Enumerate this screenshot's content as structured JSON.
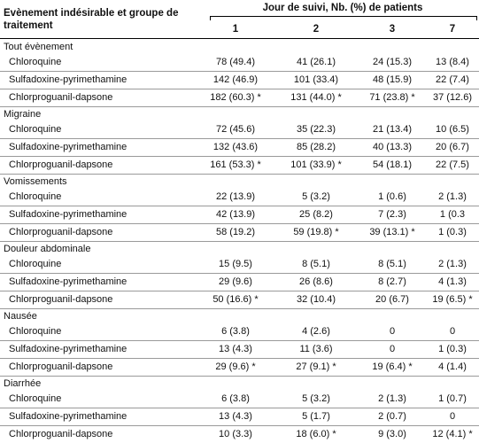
{
  "header": {
    "row_label": "Evènement indésirable et groupe de traitement",
    "spanner": "Jour de suivi, Nb. (%) de patients",
    "days": [
      "1",
      "2",
      "3",
      "7"
    ]
  },
  "groups": [
    {
      "name": "Tout évènement",
      "rows": [
        {
          "treatment": "Chloroquine",
          "values": [
            "78 (49.4)",
            "41 (26.1)",
            "24 (15.3)",
            "13 (8.4)"
          ]
        },
        {
          "treatment": "Sulfadoxine-pyrimethamine",
          "values": [
            "142 (46.9)",
            "101 (33.4)",
            "48 (15.9)",
            "22 (7.4)"
          ]
        },
        {
          "treatment": "Chlorproguanil-dapsone",
          "values": [
            "182 (60.3)  *",
            "131 (44.0)  *",
            "71 (23.8)  *",
            "37 (12.6)"
          ]
        }
      ]
    },
    {
      "name": "Migraine",
      "rows": [
        {
          "treatment": "Chloroquine",
          "values": [
            "72 (45.6)",
            "35 (22.3)",
            "21 (13.4)",
            "10 (6.5)"
          ]
        },
        {
          "treatment": "Sulfadoxine-pyrimethamine",
          "values": [
            "132 (43.6)",
            "85 (28.2)",
            "40 (13.3)",
            "20 (6.7)"
          ]
        },
        {
          "treatment": "Chlorproguanil-dapsone",
          "values": [
            "161 (53.3)  *",
            "101 (33.9)  *",
            "54 (18.1)",
            "22 (7.5)"
          ]
        }
      ]
    },
    {
      "name": "Vomissements",
      "rows": [
        {
          "treatment": "Chloroquine",
          "values": [
            "22 (13.9)",
            "5 (3.2)",
            "1 (0.6)",
            "2 (1.3)"
          ]
        },
        {
          "treatment": "Sulfadoxine-pyrimethamine",
          "values": [
            "42 (13.9)",
            "25 (8.2)",
            "7 (2.3)",
            "1 (0.3"
          ]
        },
        {
          "treatment": "Chlorproguanil-dapsone",
          "values": [
            "58 (19.2)",
            "59 (19.8)  *",
            "39 (13.1) *",
            "1 (0.3)"
          ]
        }
      ]
    },
    {
      "name": "Douleur abdominale",
      "rows": [
        {
          "treatment": "Chloroquine",
          "values": [
            "15 (9.5)",
            "8 (5.1)",
            "8 (5.1)",
            "2 (1.3)"
          ]
        },
        {
          "treatment": "Sulfadoxine-pyrimethamine",
          "values": [
            "29 (9.6)",
            "26 (8.6)",
            "8 (2.7)",
            "4 (1.3)"
          ]
        },
        {
          "treatment": "Chlorproguanil-dapsone",
          "values": [
            "50 (16.6)  *",
            "32 (10.4)",
            "20 (6.7)",
            "19 (6.5)  *"
          ]
        }
      ]
    },
    {
      "name": "Nausée",
      "rows": [
        {
          "treatment": "Chloroquine",
          "values": [
            "6 (3.8)",
            "4 (2.6)",
            "0",
            "0"
          ]
        },
        {
          "treatment": "Sulfadoxine-pyrimethamine",
          "values": [
            "13 (4.3)",
            "11 (3.6)",
            "0",
            "1 (0.3)"
          ]
        },
        {
          "treatment": "Chlorproguanil-dapsone",
          "values": [
            "29 (9.6)  *",
            "27 (9.1) *",
            "19 (6.4) *",
            "4 (1.4)"
          ]
        }
      ]
    },
    {
      "name": "Diarrhée",
      "rows": [
        {
          "treatment": "Chloroquine",
          "values": [
            "6 (3.8)",
            "5 (3.2)",
            "2 (1.3)",
            "1 (0.7)"
          ]
        },
        {
          "treatment": "Sulfadoxine-pyrimethamine",
          "values": [
            "13 (4.3)",
            "5 (1.7)",
            "2 (0.7)",
            "0"
          ]
        },
        {
          "treatment": "Chlorproguanil-dapsone",
          "values": [
            "10 (3.3)",
            "18 (6.0)  *",
            "9 (3.0)",
            "12 (4.1)  *"
          ]
        }
      ]
    }
  ]
}
